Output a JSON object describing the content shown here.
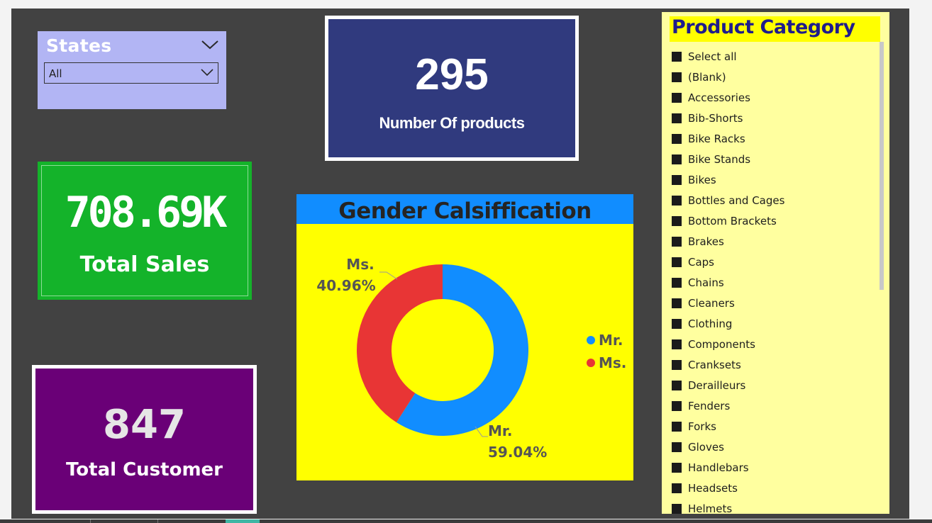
{
  "states_slicer": {
    "title": "States",
    "selected": "All"
  },
  "kpis": {
    "products": {
      "value": "295",
      "label": "Number Of products",
      "bg": "#303a7e"
    },
    "sales": {
      "value": "708.69K",
      "label": "Total Sales",
      "bg": "#14b32a"
    },
    "customers": {
      "value": "847",
      "label": "Total Customer",
      "bg": "#6a0077"
    }
  },
  "gender_chart": {
    "title": "Gender Calsiffication"
  },
  "chart_data": {
    "type": "pie",
    "donut": true,
    "title": "Gender Calsiffication",
    "legend_position": "right",
    "slices": [
      {
        "name": "Mr.",
        "value": 59.04,
        "label": "59.04%",
        "color": "#118dff"
      },
      {
        "name": "Ms.",
        "value": 40.96,
        "label": "40.96%",
        "color": "#e83535"
      }
    ]
  },
  "product_category": {
    "title": "Product Category",
    "items": [
      "Select all",
      "(Blank)",
      "Accessories",
      "Bib-Shorts",
      "Bike Racks",
      "Bike Stands",
      "Bikes",
      "Bottles and Cages",
      "Bottom Brackets",
      "Brakes",
      "Caps",
      "Chains",
      "Cleaners",
      "Clothing",
      "Components",
      "Cranksets",
      "Derailleurs",
      "Fenders",
      "Forks",
      "Gloves",
      "Handlebars",
      "Headsets",
      "Helmets"
    ]
  },
  "colors": {
    "canvas": "#424242",
    "slicer_bg": "#b2b5f4",
    "chart_bg": "#ffff00",
    "chart_header": "#118dff",
    "category_bg": "#ffff9f",
    "category_title": "#1f1c8c"
  }
}
